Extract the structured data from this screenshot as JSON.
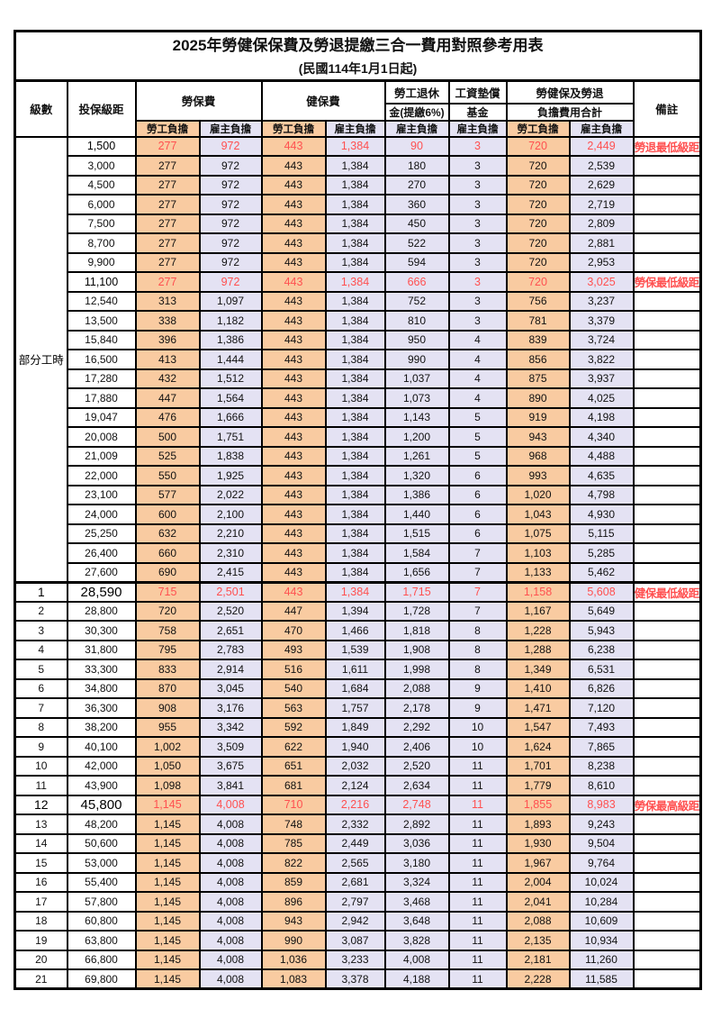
{
  "title": "2025年勞健保保費及勞退提繳三合一費用對照參考用表",
  "subtitle": "(民國114年1月1日起)",
  "header": {
    "level": "級數",
    "salary": "投保級距",
    "labor": "勞保費",
    "health": "健保費",
    "pension_line1": "勞工退休",
    "pension_line2": "金(提繳6%)",
    "fund_line1": "工資墊償",
    "fund_line2": "基金",
    "total_line1": "勞健保及勞退",
    "total_line2": "負擔費用合計",
    "remark": "備註",
    "employee": "勞工負擔",
    "employer": "雇主負擔"
  },
  "part_time_label": "部分工時",
  "colors": {
    "employee_bg": "#F9CBA1",
    "employer_bg": "#E4E2F3",
    "highlight_text": "#FF5050",
    "border": "#000000"
  },
  "rows": [
    {
      "level": "",
      "salary": "1,500",
      "labor_emp": "277",
      "labor_er": "972",
      "health_emp": "443",
      "health_er": "1,384",
      "pension": "90",
      "fund": "3",
      "sum_emp": "720",
      "sum_er": "2,449",
      "note": "勞退最低級距",
      "red": true
    },
    {
      "level": "",
      "salary": "3,000",
      "labor_emp": "277",
      "labor_er": "972",
      "health_emp": "443",
      "health_er": "1,384",
      "pension": "180",
      "fund": "3",
      "sum_emp": "720",
      "sum_er": "2,539",
      "note": ""
    },
    {
      "level": "",
      "salary": "4,500",
      "labor_emp": "277",
      "labor_er": "972",
      "health_emp": "443",
      "health_er": "1,384",
      "pension": "270",
      "fund": "3",
      "sum_emp": "720",
      "sum_er": "2,629",
      "note": ""
    },
    {
      "level": "",
      "salary": "6,000",
      "labor_emp": "277",
      "labor_er": "972",
      "health_emp": "443",
      "health_er": "1,384",
      "pension": "360",
      "fund": "3",
      "sum_emp": "720",
      "sum_er": "2,719",
      "note": ""
    },
    {
      "level": "",
      "salary": "7,500",
      "labor_emp": "277",
      "labor_er": "972",
      "health_emp": "443",
      "health_er": "1,384",
      "pension": "450",
      "fund": "3",
      "sum_emp": "720",
      "sum_er": "2,809",
      "note": ""
    },
    {
      "level": "",
      "salary": "8,700",
      "labor_emp": "277",
      "labor_er": "972",
      "health_emp": "443",
      "health_er": "1,384",
      "pension": "522",
      "fund": "3",
      "sum_emp": "720",
      "sum_er": "2,881",
      "note": ""
    },
    {
      "level": "",
      "salary": "9,900",
      "labor_emp": "277",
      "labor_er": "972",
      "health_emp": "443",
      "health_er": "1,384",
      "pension": "594",
      "fund": "3",
      "sum_emp": "720",
      "sum_er": "2,953",
      "note": ""
    },
    {
      "level": "",
      "salary": "11,100",
      "labor_emp": "277",
      "labor_er": "972",
      "health_emp": "443",
      "health_er": "1,384",
      "pension": "666",
      "fund": "3",
      "sum_emp": "720",
      "sum_er": "3,025",
      "note": "勞保最低級距",
      "red": true
    },
    {
      "level": "",
      "salary": "12,540",
      "labor_emp": "313",
      "labor_er": "1,097",
      "health_emp": "443",
      "health_er": "1,384",
      "pension": "752",
      "fund": "3",
      "sum_emp": "756",
      "sum_er": "3,237",
      "note": ""
    },
    {
      "level": "",
      "salary": "13,500",
      "labor_emp": "338",
      "labor_er": "1,182",
      "health_emp": "443",
      "health_er": "1,384",
      "pension": "810",
      "fund": "3",
      "sum_emp": "781",
      "sum_er": "3,379",
      "note": ""
    },
    {
      "level": "",
      "salary": "15,840",
      "labor_emp": "396",
      "labor_er": "1,386",
      "health_emp": "443",
      "health_er": "1,384",
      "pension": "950",
      "fund": "4",
      "sum_emp": "839",
      "sum_er": "3,724",
      "note": ""
    },
    {
      "level": "",
      "salary": "16,500",
      "labor_emp": "413",
      "labor_er": "1,444",
      "health_emp": "443",
      "health_er": "1,384",
      "pension": "990",
      "fund": "4",
      "sum_emp": "856",
      "sum_er": "3,822",
      "note": ""
    },
    {
      "level": "",
      "salary": "17,280",
      "labor_emp": "432",
      "labor_er": "1,512",
      "health_emp": "443",
      "health_er": "1,384",
      "pension": "1,037",
      "fund": "4",
      "sum_emp": "875",
      "sum_er": "3,937",
      "note": ""
    },
    {
      "level": "",
      "salary": "17,880",
      "labor_emp": "447",
      "labor_er": "1,564",
      "health_emp": "443",
      "health_er": "1,384",
      "pension": "1,073",
      "fund": "4",
      "sum_emp": "890",
      "sum_er": "4,025",
      "note": ""
    },
    {
      "level": "",
      "salary": "19,047",
      "labor_emp": "476",
      "labor_er": "1,666",
      "health_emp": "443",
      "health_er": "1,384",
      "pension": "1,143",
      "fund": "5",
      "sum_emp": "919",
      "sum_er": "4,198",
      "note": ""
    },
    {
      "level": "",
      "salary": "20,008",
      "labor_emp": "500",
      "labor_er": "1,751",
      "health_emp": "443",
      "health_er": "1,384",
      "pension": "1,200",
      "fund": "5",
      "sum_emp": "943",
      "sum_er": "4,340",
      "note": ""
    },
    {
      "level": "",
      "salary": "21,009",
      "labor_emp": "525",
      "labor_er": "1,838",
      "health_emp": "443",
      "health_er": "1,384",
      "pension": "1,261",
      "fund": "5",
      "sum_emp": "968",
      "sum_er": "4,488",
      "note": ""
    },
    {
      "level": "",
      "salary": "22,000",
      "labor_emp": "550",
      "labor_er": "1,925",
      "health_emp": "443",
      "health_er": "1,384",
      "pension": "1,320",
      "fund": "6",
      "sum_emp": "993",
      "sum_er": "4,635",
      "note": ""
    },
    {
      "level": "",
      "salary": "23,100",
      "labor_emp": "577",
      "labor_er": "2,022",
      "health_emp": "443",
      "health_er": "1,384",
      "pension": "1,386",
      "fund": "6",
      "sum_emp": "1,020",
      "sum_er": "4,798",
      "note": ""
    },
    {
      "level": "",
      "salary": "24,000",
      "labor_emp": "600",
      "labor_er": "2,100",
      "health_emp": "443",
      "health_er": "1,384",
      "pension": "1,440",
      "fund": "6",
      "sum_emp": "1,043",
      "sum_er": "4,930",
      "note": ""
    },
    {
      "level": "",
      "salary": "25,250",
      "labor_emp": "632",
      "labor_er": "2,210",
      "health_emp": "443",
      "health_er": "1,384",
      "pension": "1,515",
      "fund": "6",
      "sum_emp": "1,075",
      "sum_er": "5,115",
      "note": ""
    },
    {
      "level": "",
      "salary": "26,400",
      "labor_emp": "660",
      "labor_er": "2,310",
      "health_emp": "443",
      "health_er": "1,384",
      "pension": "1,584",
      "fund": "7",
      "sum_emp": "1,103",
      "sum_er": "5,285",
      "note": ""
    },
    {
      "level": "",
      "salary": "27,600",
      "labor_emp": "690",
      "labor_er": "2,415",
      "health_emp": "443",
      "health_er": "1,384",
      "pension": "1,656",
      "fund": "7",
      "sum_emp": "1,133",
      "sum_er": "5,462",
      "note": ""
    },
    {
      "level": "1",
      "salary": "28,590",
      "labor_emp": "715",
      "labor_er": "2,501",
      "health_emp": "443",
      "health_er": "1,384",
      "pension": "1,715",
      "fund": "7",
      "sum_emp": "1,158",
      "sum_er": "5,608",
      "note": "健保最低級距",
      "red": true,
      "big": true
    },
    {
      "level": "2",
      "salary": "28,800",
      "labor_emp": "720",
      "labor_er": "2,520",
      "health_emp": "447",
      "health_er": "1,394",
      "pension": "1,728",
      "fund": "7",
      "sum_emp": "1,167",
      "sum_er": "5,649",
      "note": ""
    },
    {
      "level": "3",
      "salary": "30,300",
      "labor_emp": "758",
      "labor_er": "2,651",
      "health_emp": "470",
      "health_er": "1,466",
      "pension": "1,818",
      "fund": "8",
      "sum_emp": "1,228",
      "sum_er": "5,943",
      "note": ""
    },
    {
      "level": "4",
      "salary": "31,800",
      "labor_emp": "795",
      "labor_er": "2,783",
      "health_emp": "493",
      "health_er": "1,539",
      "pension": "1,908",
      "fund": "8",
      "sum_emp": "1,288",
      "sum_er": "6,238",
      "note": ""
    },
    {
      "level": "5",
      "salary": "33,300",
      "labor_emp": "833",
      "labor_er": "2,914",
      "health_emp": "516",
      "health_er": "1,611",
      "pension": "1,998",
      "fund": "8",
      "sum_emp": "1,349",
      "sum_er": "6,531",
      "note": ""
    },
    {
      "level": "6",
      "salary": "34,800",
      "labor_emp": "870",
      "labor_er": "3,045",
      "health_emp": "540",
      "health_er": "1,684",
      "pension": "2,088",
      "fund": "9",
      "sum_emp": "1,410",
      "sum_er": "6,826",
      "note": ""
    },
    {
      "level": "7",
      "salary": "36,300",
      "labor_emp": "908",
      "labor_er": "3,176",
      "health_emp": "563",
      "health_er": "1,757",
      "pension": "2,178",
      "fund": "9",
      "sum_emp": "1,471",
      "sum_er": "7,120",
      "note": ""
    },
    {
      "level": "8",
      "salary": "38,200",
      "labor_emp": "955",
      "labor_er": "3,342",
      "health_emp": "592",
      "health_er": "1,849",
      "pension": "2,292",
      "fund": "10",
      "sum_emp": "1,547",
      "sum_er": "7,493",
      "note": ""
    },
    {
      "level": "9",
      "salary": "40,100",
      "labor_emp": "1,002",
      "labor_er": "3,509",
      "health_emp": "622",
      "health_er": "1,940",
      "pension": "2,406",
      "fund": "10",
      "sum_emp": "1,624",
      "sum_er": "7,865",
      "note": ""
    },
    {
      "level": "10",
      "salary": "42,000",
      "labor_emp": "1,050",
      "labor_er": "3,675",
      "health_emp": "651",
      "health_er": "2,032",
      "pension": "2,520",
      "fund": "11",
      "sum_emp": "1,701",
      "sum_er": "8,238",
      "note": ""
    },
    {
      "level": "11",
      "salary": "43,900",
      "labor_emp": "1,098",
      "labor_er": "3,841",
      "health_emp": "681",
      "health_er": "2,124",
      "pension": "2,634",
      "fund": "11",
      "sum_emp": "1,779",
      "sum_er": "8,610",
      "note": ""
    },
    {
      "level": "12",
      "salary": "45,800",
      "labor_emp": "1,145",
      "labor_er": "4,008",
      "health_emp": "710",
      "health_er": "2,216",
      "pension": "2,748",
      "fund": "11",
      "sum_emp": "1,855",
      "sum_er": "8,983",
      "note": "勞保最高級距",
      "red": true,
      "big": true
    },
    {
      "level": "13",
      "salary": "48,200",
      "labor_emp": "1,145",
      "labor_er": "4,008",
      "health_emp": "748",
      "health_er": "2,332",
      "pension": "2,892",
      "fund": "11",
      "sum_emp": "1,893",
      "sum_er": "9,243",
      "note": ""
    },
    {
      "level": "14",
      "salary": "50,600",
      "labor_emp": "1,145",
      "labor_er": "4,008",
      "health_emp": "785",
      "health_er": "2,449",
      "pension": "3,036",
      "fund": "11",
      "sum_emp": "1,930",
      "sum_er": "9,504",
      "note": ""
    },
    {
      "level": "15",
      "salary": "53,000",
      "labor_emp": "1,145",
      "labor_er": "4,008",
      "health_emp": "822",
      "health_er": "2,565",
      "pension": "3,180",
      "fund": "11",
      "sum_emp": "1,967",
      "sum_er": "9,764",
      "note": ""
    },
    {
      "level": "16",
      "salary": "55,400",
      "labor_emp": "1,145",
      "labor_er": "4,008",
      "health_emp": "859",
      "health_er": "2,681",
      "pension": "3,324",
      "fund": "11",
      "sum_emp": "2,004",
      "sum_er": "10,024",
      "note": ""
    },
    {
      "level": "17",
      "salary": "57,800",
      "labor_emp": "1,145",
      "labor_er": "4,008",
      "health_emp": "896",
      "health_er": "2,797",
      "pension": "3,468",
      "fund": "11",
      "sum_emp": "2,041",
      "sum_er": "10,284",
      "note": ""
    },
    {
      "level": "18",
      "salary": "60,800",
      "labor_emp": "1,145",
      "labor_er": "4,008",
      "health_emp": "943",
      "health_er": "2,942",
      "pension": "3,648",
      "fund": "11",
      "sum_emp": "2,088",
      "sum_er": "10,609",
      "note": ""
    },
    {
      "level": "19",
      "salary": "63,800",
      "labor_emp": "1,145",
      "labor_er": "4,008",
      "health_emp": "990",
      "health_er": "3,087",
      "pension": "3,828",
      "fund": "11",
      "sum_emp": "2,135",
      "sum_er": "10,934",
      "note": ""
    },
    {
      "level": "20",
      "salary": "66,800",
      "labor_emp": "1,145",
      "labor_er": "4,008",
      "health_emp": "1,036",
      "health_er": "3,233",
      "pension": "4,008",
      "fund": "11",
      "sum_emp": "2,181",
      "sum_er": "11,260",
      "note": ""
    },
    {
      "level": "21",
      "salary": "69,800",
      "labor_emp": "1,145",
      "labor_er": "4,008",
      "health_emp": "1,083",
      "health_er": "3,378",
      "pension": "4,188",
      "fund": "11",
      "sum_emp": "2,228",
      "sum_er": "11,585",
      "note": ""
    }
  ]
}
